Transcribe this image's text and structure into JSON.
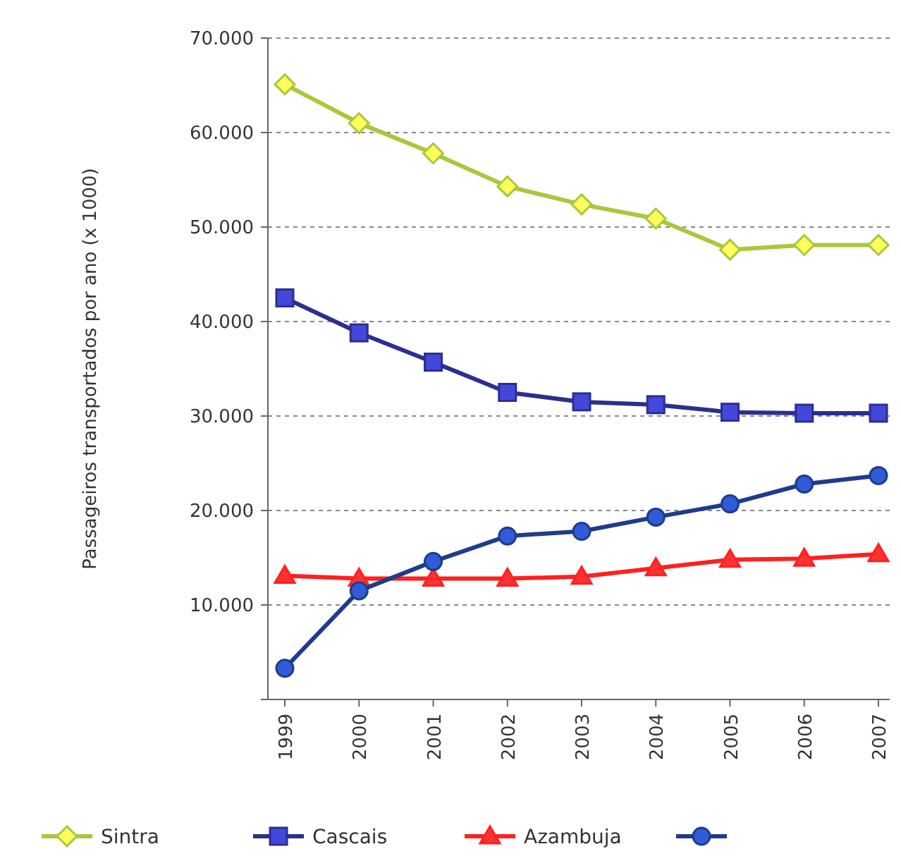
{
  "chart_data": {
    "type": "line",
    "ylabel": "Passageiros transportados por ano (x 1000)",
    "categories": [
      "1999",
      "2000",
      "2001",
      "2002",
      "2003",
      "2004",
      "2005",
      "2006",
      "2007"
    ],
    "series": [
      {
        "name": "Sintra",
        "color": "#a8c83c",
        "marker": "diamond",
        "values": [
          65100,
          61000,
          57800,
          54300,
          52400,
          50900,
          47600,
          48100,
          48100
        ]
      },
      {
        "name": "Cascais",
        "color": "#2b2f8f",
        "marker": "square",
        "values": [
          42500,
          38800,
          35700,
          32500,
          31500,
          31200,
          30400,
          30300,
          30300
        ]
      },
      {
        "name": "Azambuja",
        "color": "#ff2020",
        "marker": "triangle",
        "values": [
          13100,
          12800,
          12800,
          12800,
          13000,
          13900,
          14800,
          14900,
          15400
        ]
      },
      {
        "color": "#1f3c8c",
        "marker": "circle",
        "values": [
          3300,
          11500,
          14600,
          17300,
          17800,
          19300,
          20700,
          22800,
          23700
        ]
      }
    ],
    "ylim": [
      0,
      70000
    ],
    "yticks": [
      {
        "value": 0,
        "label": null
      },
      {
        "value": 10000,
        "label": "10.000"
      },
      {
        "value": 20000,
        "label": "20.000"
      },
      {
        "value": 30000,
        "label": "30.000"
      },
      {
        "value": 40000,
        "label": "40.000"
      },
      {
        "value": 50000,
        "label": "50.000"
      },
      {
        "value": 60000,
        "label": "60.000"
      },
      {
        "value": 70000,
        "label": "70.000"
      }
    ],
    "grid": "y",
    "legend": "bottom",
    "line_style": "solid"
  }
}
